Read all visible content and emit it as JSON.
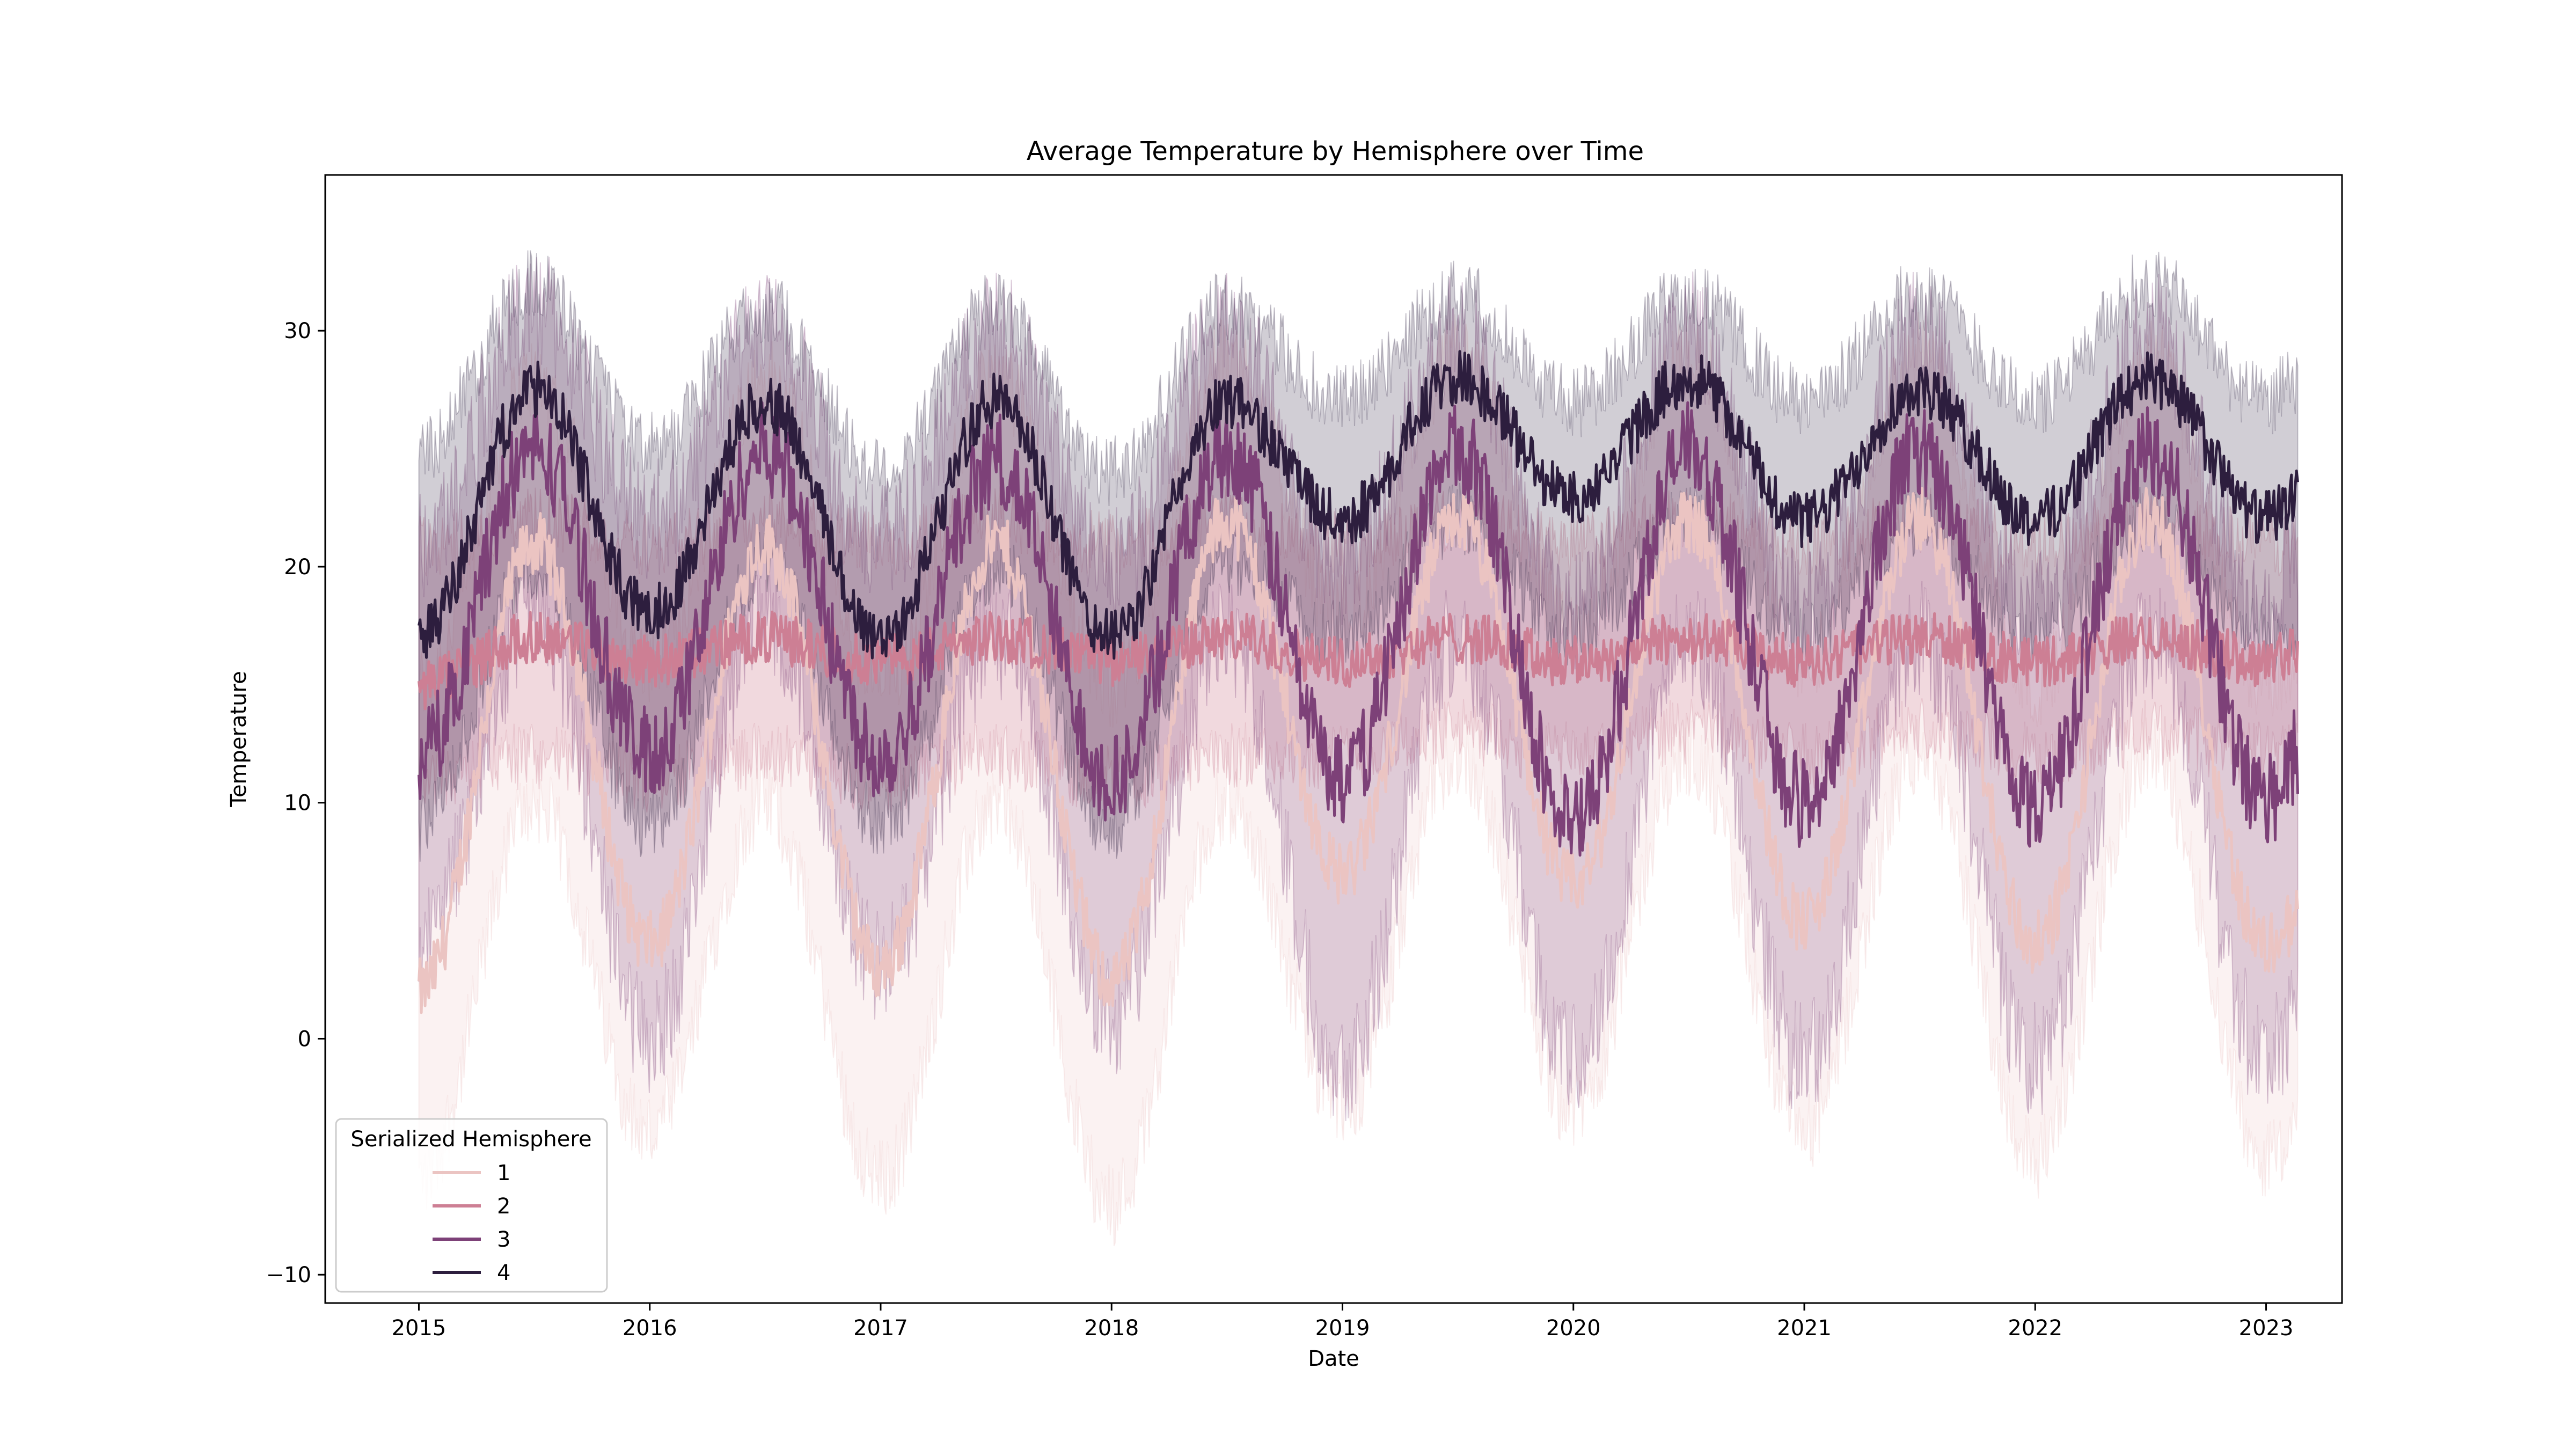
{
  "chart_data": {
    "type": "line",
    "title": "Average Temperature by Hemisphere over Time",
    "xlabel": "Date",
    "ylabel": "Temperature",
    "xlim": [
      "2014-08-06",
      "2023-05-01"
    ],
    "ylim": [
      -11.2,
      36.6
    ],
    "x_ticks": [
      "2015",
      "2016",
      "2017",
      "2018",
      "2019",
      "2020",
      "2021",
      "2022",
      "2023"
    ],
    "y_ticks": [
      -10,
      0,
      10,
      20,
      30
    ],
    "grid": false,
    "legend": {
      "title": "Serialized Hemisphere",
      "placement": "lower-left",
      "entries": [
        "1",
        "2",
        "3",
        "4"
      ]
    },
    "x_range_dates": [
      "2015-01-01",
      "2023-02-20"
    ],
    "series": [
      {
        "name": "1",
        "color": "#ebc4c2",
        "x_years": [
          2015.0,
          2015.5,
          2016.0,
          2016.5,
          2017.0,
          2017.5,
          2018.0,
          2018.5,
          2019.0,
          2019.5,
          2020.0,
          2020.5,
          2021.0,
          2021.5,
          2022.0,
          2022.5,
          2023.0,
          2023.14
        ],
        "y": [
          2,
          21,
          4,
          21,
          3,
          21,
          2.5,
          22,
          7,
          22,
          6.5,
          22,
          5,
          22,
          4,
          22,
          4,
          5
        ],
        "band_low": [
          -6,
          10,
          -4,
          10,
          -6,
          10,
          -7,
          10,
          -3,
          12,
          -3,
          12,
          -4,
          12,
          -5,
          12,
          -5,
          -4
        ],
        "band_high": [
          15,
          28,
          16,
          28,
          15,
          28,
          15,
          29,
          18,
          29,
          17,
          29,
          16,
          29,
          15,
          29,
          15,
          16
        ]
      },
      {
        "name": "2",
        "color": "#cd7f94",
        "x_years": [
          2015.0,
          2015.5,
          2016.0,
          2016.5,
          2017.0,
          2017.5,
          2018.0,
          2018.5,
          2019.0,
          2019.5,
          2020.0,
          2020.5,
          2021.0,
          2021.5,
          2022.0,
          2022.5,
          2023.0,
          2023.14
        ],
        "y": [
          15,
          17,
          16,
          17,
          16,
          17,
          16,
          17,
          16,
          17,
          16,
          17,
          16,
          17,
          16,
          17,
          16,
          16.5
        ],
        "band_low": [
          11,
          12,
          11,
          12,
          11,
          12,
          11,
          12,
          12,
          13,
          12,
          13,
          12,
          13,
          12,
          13,
          12,
          12
        ],
        "band_high": [
          21,
          22,
          21,
          22,
          21,
          22,
          21,
          22,
          21,
          22,
          21,
          22,
          21,
          22,
          21,
          22,
          21,
          21
        ]
      },
      {
        "name": "3",
        "color": "#7d4178",
        "x_years": [
          2015.0,
          2015.5,
          2016.0,
          2016.5,
          2017.0,
          2017.5,
          2018.0,
          2018.5,
          2019.0,
          2019.5,
          2020.0,
          2020.5,
          2021.0,
          2021.5,
          2022.0,
          2022.5,
          2023.0,
          2023.14
        ],
        "y": [
          12,
          25,
          12,
          25,
          12,
          24.5,
          11,
          25,
          11,
          25,
          9,
          25,
          10,
          25,
          10,
          25,
          10,
          12
        ],
        "band_low": [
          4,
          18,
          0,
          18,
          3,
          17,
          1,
          17,
          -1,
          17,
          -1,
          17,
          -1,
          17,
          -1,
          17,
          -1,
          1
        ],
        "band_high": [
          21,
          31,
          22,
          30,
          21,
          30,
          20,
          30,
          20,
          30,
          18,
          30,
          18,
          30,
          18,
          30,
          18,
          21
        ]
      },
      {
        "name": "4",
        "color": "#2d1e3e",
        "x_years": [
          2015.0,
          2015.5,
          2016.0,
          2016.5,
          2017.0,
          2017.5,
          2018.0,
          2018.5,
          2019.0,
          2019.5,
          2020.0,
          2020.5,
          2021.0,
          2021.5,
          2022.0,
          2022.5,
          2023.0,
          2023.14
        ],
        "y": [
          17,
          27.5,
          18,
          27,
          17,
          27,
          17,
          27,
          22,
          28,
          23,
          28,
          22,
          27.5,
          22,
          28,
          22,
          23
        ],
        "band_low": [
          9,
          20,
          9,
          20,
          9,
          20,
          9,
          20,
          17,
          22,
          17,
          22,
          17,
          22,
          17,
          22,
          17,
          17
        ],
        "band_high": [
          25,
          32,
          25,
          31,
          24,
          31,
          24,
          31,
          27,
          31.5,
          27,
          31.5,
          27,
          31.5,
          27,
          32,
          27,
          28
        ]
      }
    ]
  }
}
